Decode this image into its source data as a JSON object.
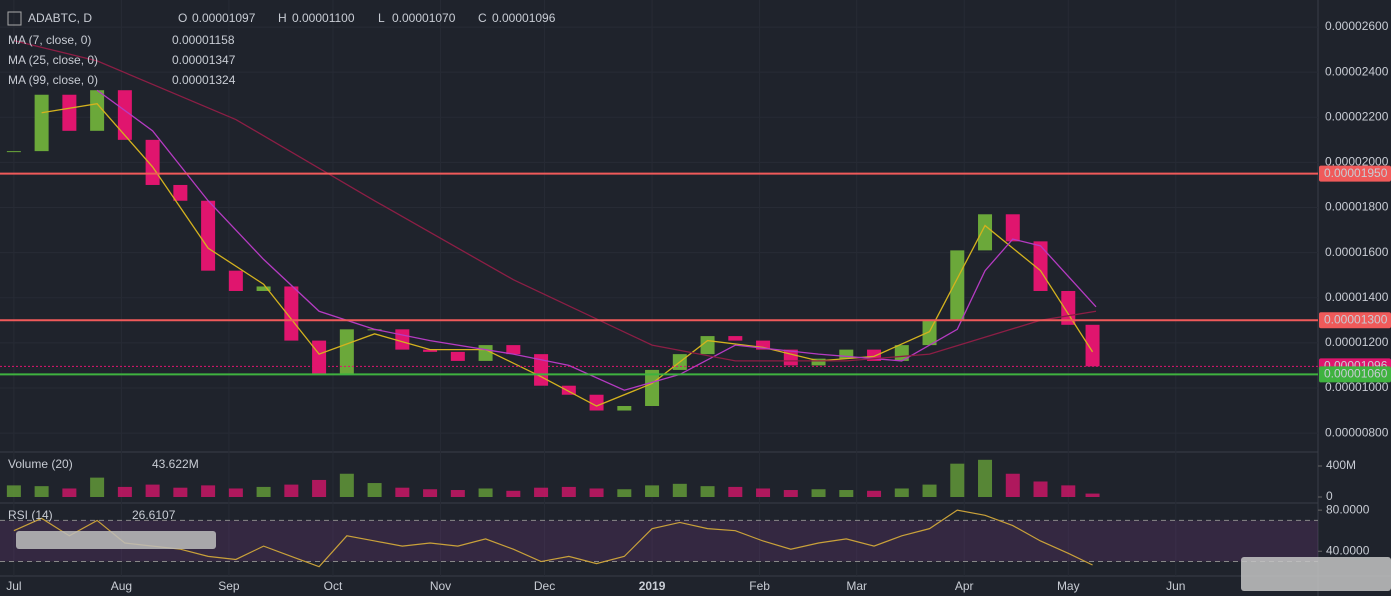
{
  "chart_data": {
    "type": "candlestick",
    "symbol": "ADABTC, D",
    "ohlc": [
      {
        "key": "O",
        "value": 1.097e-05,
        "label": "0.00001097"
      },
      {
        "key": "H",
        "value": 1.1e-05,
        "label": "0.00001100"
      },
      {
        "key": "L",
        "value": 1.07e-05,
        "label": "0.00001070"
      },
      {
        "key": "C",
        "value": 1.096e-05,
        "label": "0.00001096"
      }
    ],
    "xlim": [
      -4,
      376
    ],
    "xticks": [
      {
        "value": 0,
        "label": "Jul"
      },
      {
        "value": 31,
        "label": "Aug"
      },
      {
        "value": 62,
        "label": "Sep"
      },
      {
        "value": 92,
        "label": "Oct"
      },
      {
        "value": 123,
        "label": "Nov"
      },
      {
        "value": 153,
        "label": "Dec"
      },
      {
        "value": 184,
        "label": "2019"
      },
      {
        "value": 215,
        "label": "Feb"
      },
      {
        "value": 243,
        "label": "Mar"
      },
      {
        "value": 274,
        "label": "Apr"
      },
      {
        "value": 304,
        "label": "May"
      },
      {
        "value": 335,
        "label": "Jun"
      }
    ],
    "ylim": [
      7.25e-06,
      2.72e-05
    ],
    "yticks": [
      {
        "value": 2.6e-05,
        "label": "0.00002600"
      },
      {
        "value": 2.4e-05,
        "label": "0.00002400"
      },
      {
        "value": 2.2e-05,
        "label": "0.00002200"
      },
      {
        "value": 2e-05,
        "label": "0.00002000"
      },
      {
        "value": 1.8e-05,
        "label": "0.00001800"
      },
      {
        "value": 1.6e-05,
        "label": "0.00001600"
      },
      {
        "value": 1.4e-05,
        "label": "0.00001400"
      },
      {
        "value": 1.2e-05,
        "label": "0.00001200"
      },
      {
        "value": 1e-05,
        "label": "0.00001000"
      },
      {
        "value": 8e-06,
        "label": "0.00000800"
      }
    ],
    "up_color": "#6ba83a",
    "down_color": "#e0156e",
    "x": [
      0,
      8,
      16,
      24,
      32,
      40,
      48,
      56,
      64,
      72,
      80,
      88,
      96,
      104,
      112,
      120,
      128,
      136,
      144,
      152,
      160,
      168,
      176,
      184,
      192,
      200,
      208,
      216,
      224,
      232,
      240,
      248,
      256,
      264,
      272,
      280,
      288,
      296,
      304,
      311
    ],
    "close": [
      2.05e-05,
      2.3e-05,
      2.14e-05,
      2.32e-05,
      2.1e-05,
      1.9e-05,
      1.83e-05,
      1.52e-05,
      1.43e-05,
      1.45e-05,
      1.21e-05,
      1.06e-05,
      1.26e-05,
      1.26e-05,
      1.17e-05,
      1.16e-05,
      1.12e-05,
      1.19e-05,
      1.15e-05,
      1.01e-05,
      9.7e-06,
      9e-06,
      9.2e-06,
      1.08e-05,
      1.15e-05,
      1.23e-05,
      1.21e-05,
      1.17e-05,
      1.1e-05,
      1.13e-05,
      1.17e-05,
      1.12e-05,
      1.19e-05,
      1.3e-05,
      1.61e-05,
      1.77e-05,
      1.65e-05,
      1.43e-05,
      1.28e-05,
      1.096e-05
    ],
    "overlays": [
      {
        "name": "MA (7, close, 0)",
        "value_label": "0.00001158",
        "color": "#d4b21e",
        "x": [
          8,
          24,
          40,
          56,
          72,
          88,
          104,
          120,
          136,
          152,
          168,
          184,
          200,
          216,
          232,
          248,
          264,
          280,
          296,
          311
        ],
        "values": [
          2.22e-05,
          2.26e-05,
          1.98e-05,
          1.62e-05,
          1.46e-05,
          1.15e-05,
          1.24e-05,
          1.17e-05,
          1.17e-05,
          1.05e-05,
          9.2e-06,
          1.02e-05,
          1.21e-05,
          1.18e-05,
          1.12e-05,
          1.14e-05,
          1.25e-05,
          1.72e-05,
          1.52e-05,
          1.16e-05
        ]
      },
      {
        "name": "MA (25, close, 0)",
        "value_label": "0.00001347",
        "color": "#b53bc2",
        "x": [
          24,
          40,
          56,
          72,
          88,
          104,
          120,
          144,
          160,
          176,
          192,
          208,
          232,
          256,
          272,
          280,
          288,
          296,
          312
        ],
        "values": [
          2.32e-05,
          2.14e-05,
          1.83e-05,
          1.57e-05,
          1.34e-05,
          1.26e-05,
          1.21e-05,
          1.15e-05,
          1.1e-05,
          9.9e-06,
          1.06e-05,
          1.19e-05,
          1.15e-05,
          1.12e-05,
          1.26e-05,
          1.52e-05,
          1.66e-05,
          1.63e-05,
          1.36e-05
        ]
      },
      {
        "name": "MA (99, close, 0)",
        "value_label": "0.00001324",
        "color": "#8c1e45",
        "x": [
          0,
          24,
          64,
          104,
          144,
          184,
          208,
          240,
          264,
          296,
          312
        ],
        "values": [
          2.54e-05,
          2.45e-05,
          2.19e-05,
          1.83e-05,
          1.48e-05,
          1.19e-05,
          1.12e-05,
          1.12e-05,
          1.15e-05,
          1.3e-05,
          1.34e-05
        ]
      }
    ],
    "levels": [
      {
        "value": 1.95e-05,
        "label": "0.00001950",
        "color": "#f05a5a"
      },
      {
        "value": 1.3e-05,
        "label": "0.00001300",
        "color": "#f05a5a"
      },
      {
        "value": 1.096e-05,
        "label": "0.00001096",
        "color": "#e0156e",
        "dotted": true
      },
      {
        "value": 1.06e-05,
        "label": "0.00001060",
        "color": "#3fb23f"
      }
    ],
    "volume": {
      "name": "Volume (20)",
      "value_label": "43.622M",
      "ylim": [
        0,
        542000000
      ],
      "yticks": [
        {
          "value": 400000000,
          "label": "400M"
        },
        0
      ],
      "values": [
        150000000,
        140000000,
        110000000,
        250000000,
        130000000,
        160000000,
        120000000,
        150000000,
        110000000,
        130000000,
        160000000,
        220000000,
        300000000,
        180000000,
        120000000,
        100000000,
        90000000,
        110000000,
        80000000,
        120000000,
        130000000,
        110000000,
        100000000,
        150000000,
        170000000,
        140000000,
        130000000,
        110000000,
        90000000,
        100000000,
        90000000,
        80000000,
        110000000,
        160000000,
        430000000,
        480000000,
        300000000,
        200000000,
        150000000,
        44000000
      ]
    },
    "rsi": {
      "name": "RSI (14)",
      "value_label": "26.6107",
      "color": "#c9a13a",
      "ylim": [
        13,
        85
      ],
      "yticks": [
        {
          "value": 80,
          "label": "80.0000"
        },
        {
          "value": 40,
          "label": "40.0000"
        }
      ],
      "levels": [
        70,
        30
      ],
      "values": [
        60,
        72,
        55,
        70,
        48,
        45,
        42,
        35,
        32,
        45,
        35,
        25,
        55,
        50,
        45,
        48,
        45,
        52,
        42,
        30,
        35,
        28,
        35,
        62,
        68,
        62,
        60,
        50,
        42,
        48,
        52,
        45,
        55,
        62,
        80,
        75,
        65,
        50,
        38,
        26.6107
      ]
    }
  }
}
